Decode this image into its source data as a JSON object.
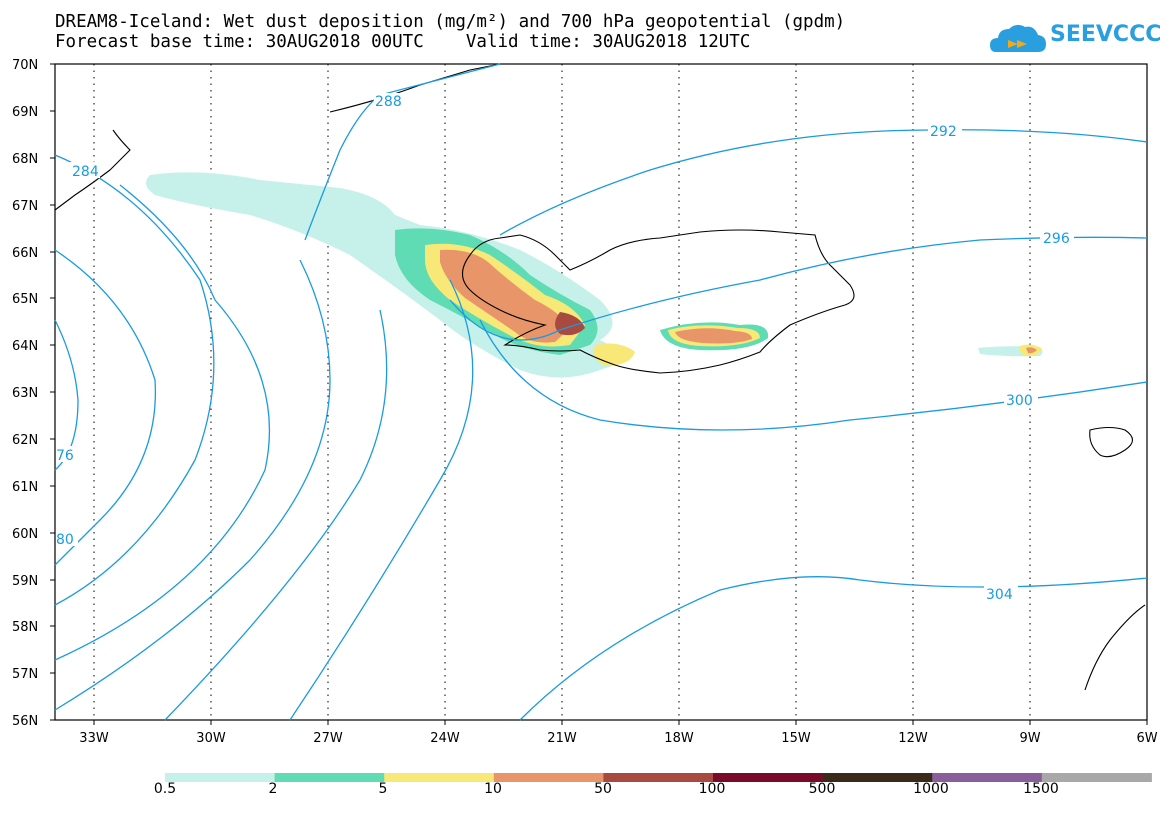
{
  "title": {
    "line1": "DREAM8-Iceland: Wet dust deposition (mg/m²) and 700 hPa geopotential (gpdm)",
    "line2": "Forecast base time: 30AUG2018 00UTC    Valid time: 30AUG2018 12UTC"
  },
  "logo": {
    "text": "SEEVCCC",
    "icon": "cloud-icon"
  },
  "map": {
    "lon_range": [
      -34,
      -6
    ],
    "lat_range": [
      56,
      70
    ],
    "lat_ticks": [
      "70N",
      "69N",
      "68N",
      "67N",
      "66N",
      "65N",
      "64N",
      "63N",
      "62N",
      "61N",
      "60N",
      "59N",
      "58N",
      "57N",
      "56N"
    ],
    "lon_ticks": [
      "33W",
      "30W",
      "27W",
      "24W",
      "21W",
      "18W",
      "15W",
      "12W",
      "9W",
      "6W"
    ],
    "contour_labels": [
      "288",
      "284",
      "292",
      "296",
      "300",
      "304",
      "76",
      "80"
    ]
  },
  "legend": {
    "colors": [
      "#c6f0ea",
      "#5fdcb4",
      "#f7e878",
      "#e8956a",
      "#a84a40",
      "#7a0a2a",
      "#3a2a1a",
      "#8a5e98",
      "#a8a8a8"
    ],
    "labels": [
      "0.5",
      "2",
      "5",
      "10",
      "50",
      "100",
      "500",
      "1000",
      "1500"
    ]
  }
}
